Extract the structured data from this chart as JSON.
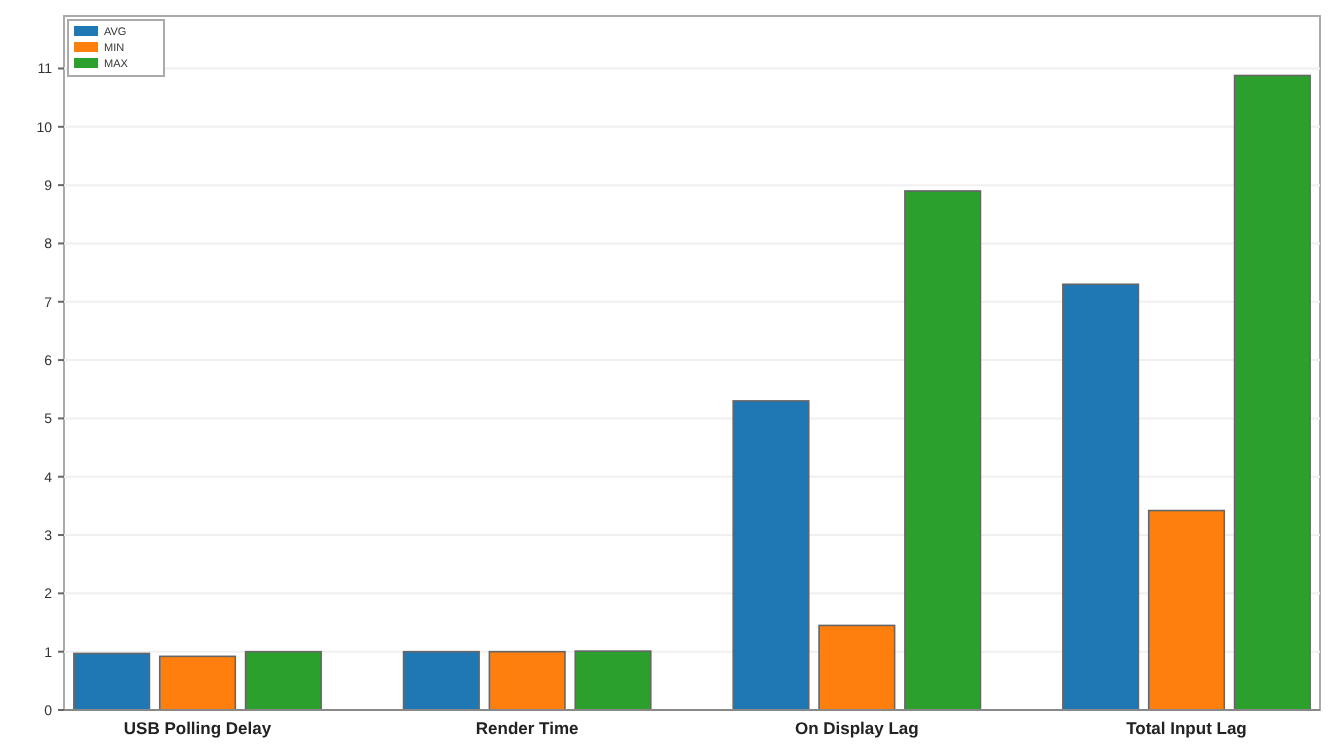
{
  "chart_data": {
    "type": "bar",
    "categories": [
      "USB Polling Delay",
      "Render Time",
      "On Display Lag",
      "Total Input Lag"
    ],
    "series": [
      {
        "name": "AVG",
        "color": "#1f77b4",
        "values": [
          0.97,
          1.0,
          5.3,
          7.3
        ]
      },
      {
        "name": "MIN",
        "color": "#ff7f0e",
        "values": [
          0.92,
          1.0,
          1.45,
          3.42
        ]
      },
      {
        "name": "MAX",
        "color": "#2ca02c",
        "values": [
          1.0,
          1.01,
          8.9,
          10.88
        ]
      }
    ],
    "ylim": [
      0,
      11.9
    ],
    "yticks": [
      0,
      1,
      2,
      3,
      4,
      5,
      6,
      7,
      8,
      9,
      10,
      11
    ],
    "grid": "y",
    "legend": "top left"
  }
}
